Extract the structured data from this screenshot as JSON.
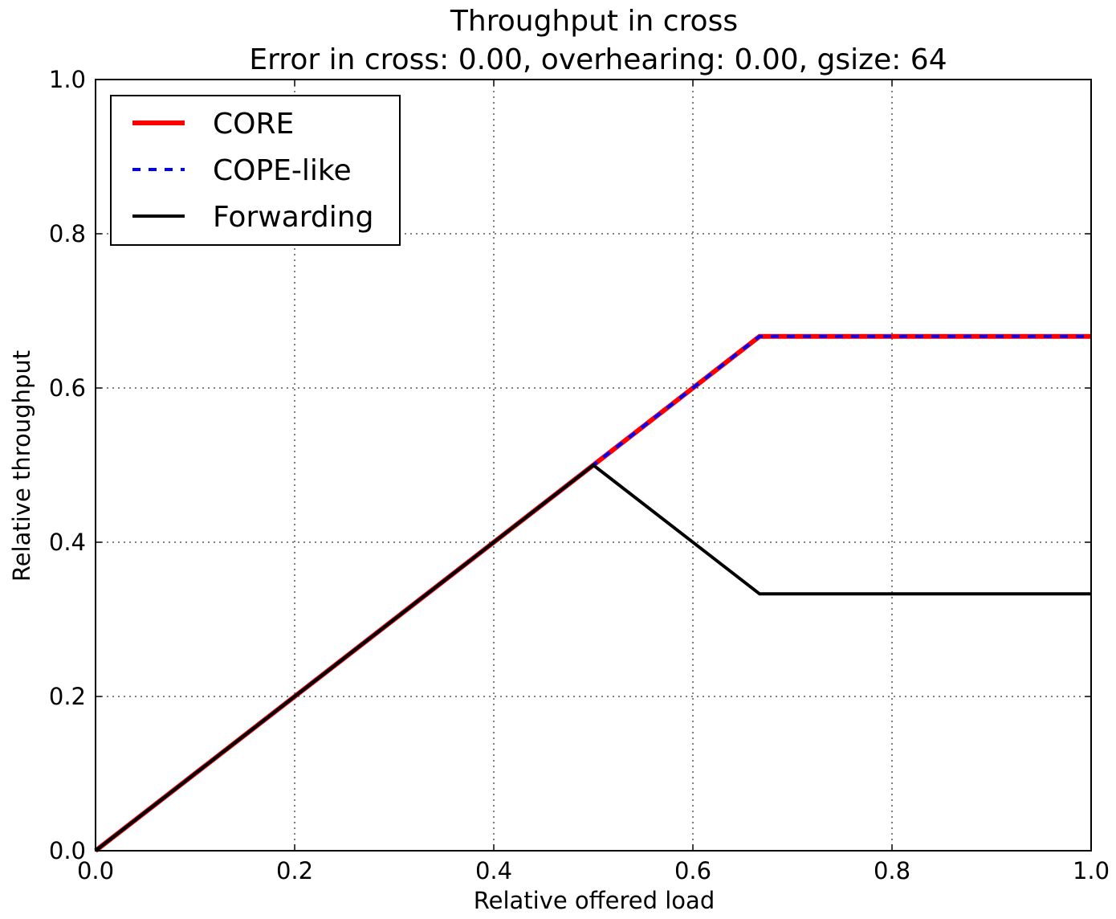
{
  "chart_data": {
    "type": "line",
    "title": "Throughput in cross",
    "subtitle": "Error in cross: 0.00, overhearing: 0.00, gsize: 64",
    "xlabel": "Relative offered load",
    "ylabel": "Relative throughput",
    "xlim": [
      0.0,
      1.0
    ],
    "ylim": [
      0.0,
      1.0
    ],
    "xticks": [
      0.0,
      0.2,
      0.4,
      0.6,
      0.8,
      1.0
    ],
    "yticks": [
      0.0,
      0.2,
      0.4,
      0.6,
      0.8,
      1.0
    ],
    "xtick_labels": [
      "0.0",
      "0.2",
      "0.4",
      "0.6",
      "0.8",
      "1.0"
    ],
    "ytick_labels": [
      "0.0",
      "0.2",
      "0.4",
      "0.6",
      "0.8",
      "1.0"
    ],
    "grid": true,
    "legend_position": "top-left",
    "series": [
      {
        "name": "CORE",
        "color": "#ff0000",
        "style": "solid",
        "x": [
          0.0,
          0.5,
          0.667,
          1.0
        ],
        "y": [
          0.0,
          0.5,
          0.667,
          0.667
        ]
      },
      {
        "name": "COPE-like",
        "color": "#0000ff",
        "style": "dashed",
        "x": [
          0.0,
          0.5,
          0.667,
          1.0
        ],
        "y": [
          0.0,
          0.5,
          0.667,
          0.667
        ]
      },
      {
        "name": "Forwarding",
        "color": "#000000",
        "style": "solid",
        "x": [
          0.0,
          0.5,
          0.667,
          1.0
        ],
        "y": [
          0.0,
          0.5,
          0.333,
          0.333
        ]
      }
    ]
  }
}
